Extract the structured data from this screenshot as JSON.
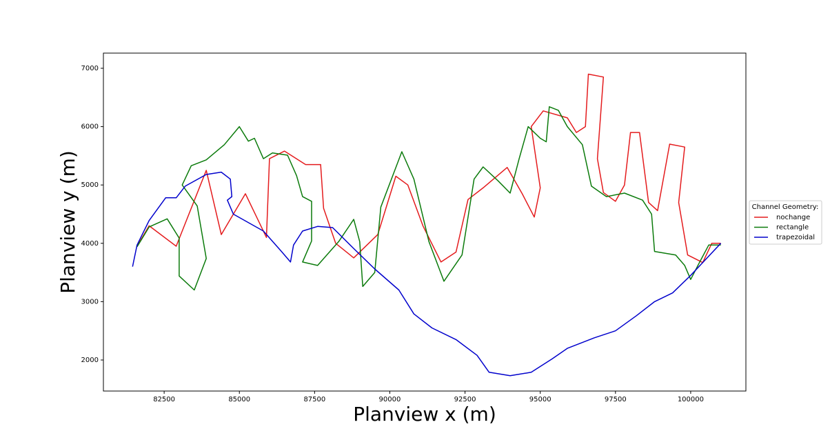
{
  "chart_data": {
    "type": "line",
    "xlabel": "Planview x (m)",
    "ylabel": "Planview y (m)",
    "xlim": [
      80481,
      101835
    ],
    "ylim": [
      1468,
      7260
    ],
    "xticks": [
      82500,
      85000,
      87500,
      90000,
      92500,
      95000,
      97500,
      100000
    ],
    "yticks": [
      2000,
      3000,
      4000,
      5000,
      6000,
      7000
    ],
    "grid": false,
    "legend": "center right outside",
    "legend_title": "Channel Geometry:",
    "series": [
      {
        "name": "nochange",
        "color": "#e41a1c",
        "x": [
          81600,
          82000,
          82900,
          83900,
          84400,
          85200,
          85900,
          86000,
          86500,
          87200,
          87700,
          87800,
          88200,
          88800,
          89600,
          90200,
          90600,
          91100,
          91700,
          92200,
          92600,
          93100,
          93900,
          94400,
          94800,
          95000,
          94700,
          95100,
          95900,
          96200,
          96500,
          96600,
          97100,
          96900,
          97100,
          97500,
          97800,
          98000,
          98300,
          98600,
          98900,
          99300,
          99800,
          99600,
          99900,
          100400,
          100700,
          101000
        ],
        "values": [
          3950,
          4300,
          3950,
          5250,
          4150,
          4850,
          4100,
          5450,
          5580,
          5350,
          5350,
          4600,
          4000,
          3750,
          4150,
          5150,
          5000,
          4300,
          3680,
          3850,
          4750,
          4950,
          5300,
          4850,
          4450,
          4950,
          6000,
          6270,
          6150,
          5900,
          6000,
          6900,
          6850,
          5450,
          4870,
          4720,
          5000,
          5900,
          5900,
          4700,
          4560,
          5700,
          5650,
          4700,
          3800,
          3670,
          4000,
          4000
        ]
      },
      {
        "name": "rectangle",
        "color": "#0a7a0a",
        "x": [
          81600,
          82000,
          82600,
          83000,
          83000,
          83500,
          83900,
          83600,
          83100,
          83400,
          83900,
          84500,
          85000,
          85300,
          85500,
          85800,
          86100,
          86600,
          86900,
          87100,
          87400,
          87400,
          87100,
          87600,
          88300,
          88800,
          89000,
          89100,
          89500,
          89700,
          90400,
          90800,
          91300,
          91800,
          92400,
          92800,
          93100,
          93600,
          94000,
          94300,
          94600,
          95000,
          95200,
          95300,
          95600,
          95900,
          96400,
          96700,
          97200,
          97800,
          98400,
          98700,
          98800,
          99500,
          99800,
          100000,
          100300,
          100600,
          101000
        ],
        "values": [
          3940,
          4280,
          4420,
          4090,
          3440,
          3200,
          3740,
          4640,
          5000,
          5330,
          5430,
          5690,
          6000,
          5750,
          5800,
          5450,
          5550,
          5510,
          5160,
          4800,
          4720,
          4040,
          3680,
          3620,
          4030,
          4410,
          4030,
          3260,
          3500,
          4620,
          5570,
          5100,
          4030,
          3350,
          3800,
          5100,
          5310,
          5070,
          4860,
          5450,
          6000,
          5800,
          5740,
          6340,
          6280,
          6000,
          5690,
          4980,
          4800,
          4860,
          4740,
          4500,
          3860,
          3800,
          3620,
          3380,
          3680,
          3970,
          3970
        ]
      },
      {
        "name": "trapezoidal",
        "color": "#0000cc",
        "x": [
          81450,
          81600,
          82000,
          82550,
          82900,
          83200,
          83900,
          84400,
          84700,
          84750,
          84600,
          84800,
          85800,
          86400,
          86700,
          86800,
          87100,
          87600,
          88100,
          88800,
          89500,
          90300,
          90800,
          91400,
          92200,
          92900,
          93300,
          94000,
          94700,
          95400,
          95900,
          96800,
          97500,
          98200,
          98800,
          99400,
          100000,
          101000
        ],
        "values": [
          3600,
          3970,
          4390,
          4780,
          4780,
          4980,
          5180,
          5220,
          5100,
          4800,
          4740,
          4500,
          4210,
          3860,
          3680,
          3970,
          4210,
          4290,
          4270,
          3910,
          3560,
          3200,
          2790,
          2550,
          2350,
          2080,
          1790,
          1730,
          1790,
          2020,
          2200,
          2380,
          2500,
          2760,
          3000,
          3150,
          3450,
          4000
        ]
      }
    ]
  }
}
